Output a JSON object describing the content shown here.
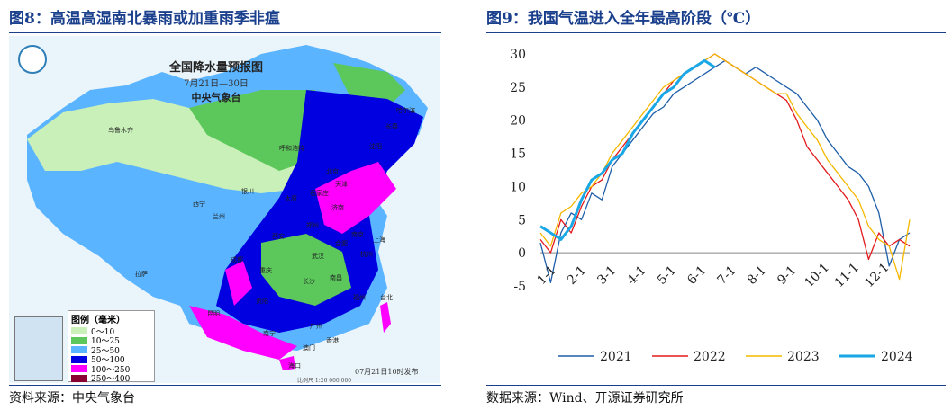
{
  "left": {
    "title": "图8：高温高湿南北暴雨或加重雨季非瘟",
    "source": "资料来源：中央气象台",
    "map": {
      "title": "全国降水量预报图",
      "date_range": "7月21日—30日",
      "org": "中央气象台",
      "issue": "07月21日10时发布",
      "scale": "比例尺 1:26 000 000",
      "legend_title": "图例（毫米）",
      "legend": [
        {
          "label": "0～10",
          "color": "#c8f0b8"
        },
        {
          "label": "10～25",
          "color": "#5cc85c"
        },
        {
          "label": "25～50",
          "color": "#5ab4ff"
        },
        {
          "label": "50～100",
          "color": "#0000e0"
        },
        {
          "label": "100～250",
          "color": "#ff00ff"
        },
        {
          "label": "250～400",
          "color": "#8b0033"
        }
      ],
      "cities": [
        "乌鲁木齐",
        "呼和浩特",
        "银川",
        "沈阳",
        "长春",
        "哈尔滨",
        "北京",
        "天津",
        "石家庄",
        "太原",
        "济南",
        "郑州",
        "西安",
        "兰州",
        "西宁",
        "拉萨",
        "成都",
        "重庆",
        "武汉",
        "合肥",
        "南京",
        "上海",
        "杭州",
        "长沙",
        "南昌",
        "福州",
        "贵阳",
        "昆明",
        "南宁",
        "广州",
        "海口",
        "台北",
        "香港",
        "澳门"
      ]
    }
  },
  "right": {
    "title": "图9：我国气温进入全年最高阶段（℃）",
    "source": "数据来源：Wind、开源证券研究所"
  },
  "chart_data": {
    "type": "line",
    "title": "",
    "xlabel": "",
    "ylabel": "",
    "ylim": [
      -5,
      30
    ],
    "yticks": [
      -5,
      0,
      5,
      10,
      15,
      20,
      25,
      30
    ],
    "xticks": [
      "1-1",
      "2-1",
      "3-1",
      "4-1",
      "5-1",
      "6-1",
      "7-1",
      "8-1",
      "9-1",
      "10-1",
      "11-1",
      "12-1"
    ],
    "grid": false,
    "legend": "bottom",
    "series": [
      {
        "name": "2021",
        "color": "#1f5fa8",
        "values": [
          1.5,
          -4.5,
          3,
          6,
          5,
          9,
          8,
          13,
          15,
          17,
          19,
          21,
          22,
          24,
          25,
          26,
          27,
          28,
          29,
          28,
          27,
          28,
          27,
          26,
          25,
          24,
          22,
          20,
          17,
          15,
          13,
          12,
          10,
          6,
          -2,
          2,
          3
        ]
      },
      {
        "name": "2022",
        "color": "#e31a1c",
        "values": [
          2,
          0,
          5,
          3,
          7,
          10,
          11,
          14,
          16,
          18,
          20,
          22,
          24,
          26,
          27,
          28,
          29,
          30,
          29,
          28,
          27,
          26,
          25,
          24,
          23,
          20,
          16,
          14,
          12,
          10,
          8,
          5,
          -1,
          3,
          1,
          2,
          1
        ]
      },
      {
        "name": "2023",
        "color": "#f5b800",
        "values": [
          3,
          1,
          6,
          7,
          9,
          10,
          12,
          15,
          17,
          19,
          21,
          23,
          25,
          26,
          27,
          28,
          29,
          30,
          29,
          28,
          27,
          26,
          25,
          24,
          24,
          21,
          19,
          17,
          14,
          12,
          10,
          8,
          4,
          2,
          1,
          -4,
          5
        ]
      },
      {
        "name": "2024",
        "color": "#1aa7e6",
        "values": [
          4,
          3,
          2,
          4,
          8,
          11,
          12,
          14,
          15,
          18,
          20,
          22,
          24,
          25,
          27,
          28,
          29,
          28
        ]
      }
    ]
  }
}
